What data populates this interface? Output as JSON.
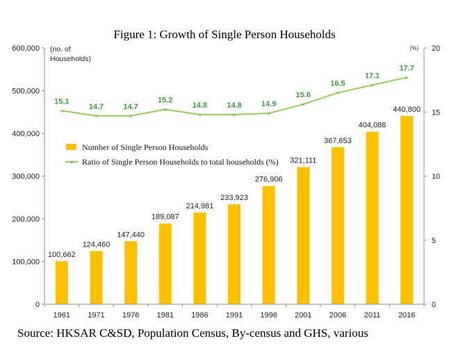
{
  "chart_data": {
    "type": "bar",
    "title": "Figure 1: Growth of Single Person Households",
    "categories": [
      "1961",
      "1971",
      "1976",
      "1981",
      "1986",
      "1991",
      "1996",
      "2001",
      "2006",
      "2011",
      "2016"
    ],
    "series": [
      {
        "name": "Number of Single Person Households",
        "type": "bar",
        "axis": "left",
        "values": [
          100662,
          124460,
          147440,
          189087,
          214981,
          233923,
          276906,
          321111,
          367653,
          404088,
          440800
        ],
        "labels": [
          "100,662",
          "124,460",
          "147,440",
          "189,087",
          "214,981",
          "233,923",
          "276,906",
          "321,111",
          "367,653",
          "404,088",
          "440,800"
        ]
      },
      {
        "name": "Ratio of Single Person Households to total households (%)",
        "type": "line",
        "axis": "right",
        "values": [
          15.1,
          14.7,
          14.7,
          15.2,
          14.8,
          14.8,
          14.9,
          15.6,
          16.5,
          17.1,
          17.7
        ],
        "labels": [
          "15.1",
          "14.7",
          "14.7",
          "15.2",
          "14.8",
          "14.8",
          "14.9",
          "15.6",
          "16.5",
          "17.1",
          "17.7"
        ]
      }
    ],
    "y_left": {
      "ylabel_line1": "(no. of",
      "ylabel_line2": "Households)",
      "ylim": [
        0,
        600000
      ],
      "ticks": [
        0,
        100000,
        200000,
        300000,
        400000,
        500000,
        600000
      ],
      "tick_labels": [
        "0",
        "100,000",
        "200,000",
        "300,000",
        "400,000",
        "500,000",
        "600,000"
      ]
    },
    "y_right": {
      "ylabel": "(%)",
      "ylim": [
        0,
        20
      ],
      "ticks": [
        0,
        5,
        10,
        15,
        20
      ],
      "tick_labels": [
        "0",
        "5",
        "10",
        "15",
        "20"
      ]
    },
    "grid": false,
    "legend_position": "upper-left",
    "colors": {
      "bar": "#ffc000",
      "line": "#92d050",
      "line_marker": "#6aa84f",
      "line_label": "#3f9b3f"
    },
    "source": "Source: HKSAR C&SD, Population Census, By-census and GHS, various"
  }
}
